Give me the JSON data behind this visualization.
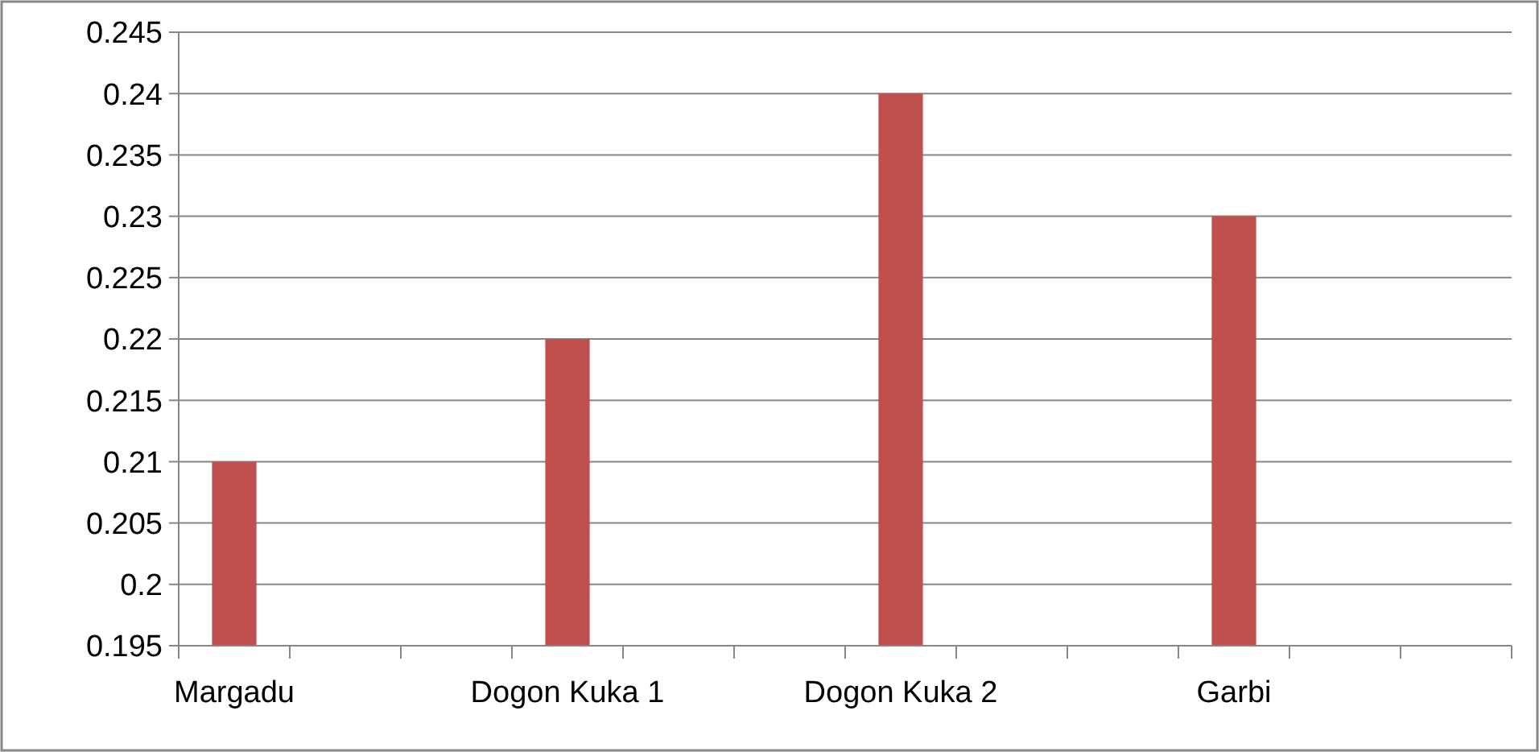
{
  "chart_data": {
    "type": "bar",
    "categories": [
      "Margadu",
      null,
      null,
      "Dogon Kuka 1",
      null,
      null,
      "Dogon Kuka 2",
      null,
      null,
      "Garbi",
      null,
      null
    ],
    "values": [
      0.21,
      null,
      null,
      0.22,
      null,
      null,
      0.24,
      null,
      null,
      0.23,
      null,
      null
    ],
    "color": "#c0504d",
    "ylim": [
      0.195,
      0.245
    ],
    "yticks": [
      0.195,
      0.2,
      0.205,
      0.21,
      0.215,
      0.22,
      0.225,
      0.23,
      0.235,
      0.24,
      0.245
    ],
    "grid": "y"
  }
}
